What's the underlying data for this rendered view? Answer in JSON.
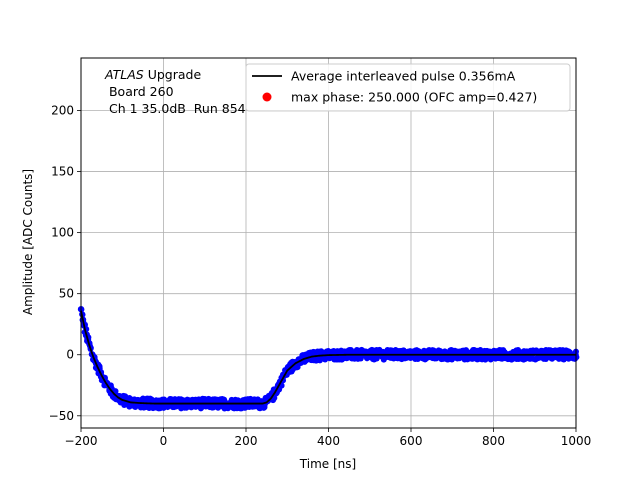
{
  "chart_data": {
    "type": "scatter",
    "title": "",
    "xlabel": "Time [ns]",
    "ylabel": "Amplitude [ADC Counts]",
    "xlim": [
      -200,
      1000
    ],
    "ylim": [
      -60,
      243
    ],
    "xticks": [
      -200,
      0,
      200,
      400,
      600,
      800,
      1000
    ],
    "yticks": [
      -50,
      0,
      50,
      100,
      150,
      200
    ],
    "grid": true,
    "legend_position": "top-right",
    "annotation": {
      "prefix": "ATLAS",
      "prefix_rest": " Upgrade",
      "line2": " Board 260",
      "line3": " Ch 1 35.0dB  Run 854"
    },
    "series": [
      {
        "name": "Average interleaved pulse 0.356mA",
        "kind": "line",
        "color": "#000000",
        "x": [
          -200,
          -190,
          -180,
          -170,
          -160,
          -150,
          -140,
          -130,
          -120,
          -110,
          -100,
          -90,
          -80,
          -60,
          -40,
          -20,
          0,
          50,
          100,
          150,
          200,
          240,
          250,
          260,
          270,
          280,
          290,
          300,
          320,
          340,
          360,
          380,
          400,
          450,
          500,
          600,
          700,
          800,
          900,
          1000
        ],
        "y": [
          36,
          20,
          8,
          -2,
          -10,
          -17,
          -23,
          -28,
          -32,
          -35,
          -37,
          -38,
          -39,
          -39.5,
          -39.8,
          -40,
          -40,
          -40,
          -40,
          -40,
          -40,
          -40,
          -39,
          -36,
          -31,
          -25,
          -19,
          -13,
          -7,
          -3.5,
          -1.5,
          -0.7,
          -0.3,
          0,
          0,
          0,
          0,
          0,
          0,
          0
        ]
      },
      {
        "name": "",
        "kind": "scatter-band",
        "color": "#0000ff",
        "band_halfwidth": 4,
        "note_follows": "Average interleaved pulse 0.356mA"
      },
      {
        "name": "max phase: 250.000 (OFC amp=0.427)",
        "kind": "point",
        "color": "#ff0000",
        "x": [
          250
        ],
        "y": [
          -40
        ]
      }
    ]
  }
}
